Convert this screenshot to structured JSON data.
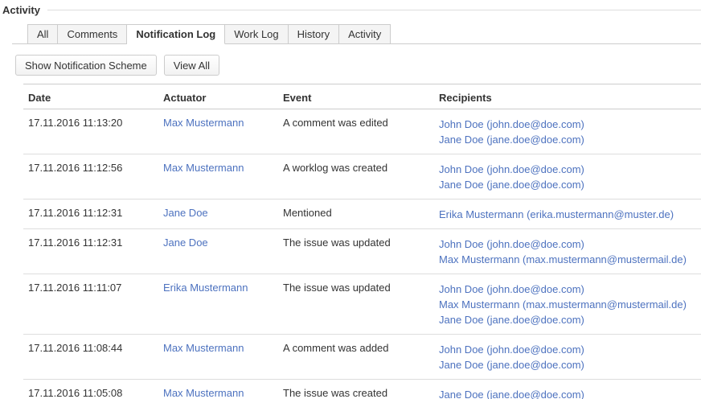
{
  "title": "Activity",
  "tabs": [
    {
      "label": "All",
      "active": false
    },
    {
      "label": "Comments",
      "active": false
    },
    {
      "label": "Notification Log",
      "active": true
    },
    {
      "label": "Work Log",
      "active": false
    },
    {
      "label": "History",
      "active": false
    },
    {
      "label": "Activity",
      "active": false
    }
  ],
  "toolbar": {
    "show_scheme_label": "Show Notification Scheme",
    "view_all_label": "View All"
  },
  "table": {
    "columns": [
      "Date",
      "Actuator",
      "Event",
      "Recipients"
    ],
    "rows": [
      {
        "date": "17.11.2016 11:13:20",
        "actuator": "Max Mustermann",
        "event": "A comment was edited",
        "recipients": [
          "John Doe (john.doe@doe.com)",
          "Jane Doe (jane.doe@doe.com)"
        ]
      },
      {
        "date": "17.11.2016 11:12:56",
        "actuator": "Max Mustermann",
        "event": "A worklog was created",
        "recipients": [
          "John Doe (john.doe@doe.com)",
          "Jane Doe (jane.doe@doe.com)"
        ]
      },
      {
        "date": "17.11.2016 11:12:31",
        "actuator": "Jane Doe",
        "event": "Mentioned",
        "recipients": [
          "Erika Mustermann (erika.mustermann@muster.de)"
        ]
      },
      {
        "date": "17.11.2016 11:12:31",
        "actuator": "Jane Doe",
        "event": "The issue was updated",
        "recipients": [
          "John Doe (john.doe@doe.com)",
          "Max Mustermann (max.mustermann@mustermail.de)"
        ]
      },
      {
        "date": "17.11.2016 11:11:07",
        "actuator": "Erika Mustermann",
        "event": "The issue was updated",
        "recipients": [
          "John Doe (john.doe@doe.com)",
          "Max Mustermann (max.mustermann@mustermail.de)",
          "Jane Doe (jane.doe@doe.com)"
        ]
      },
      {
        "date": "17.11.2016 11:08:44",
        "actuator": "Max Mustermann",
        "event": "A comment was added",
        "recipients": [
          "John Doe (john.doe@doe.com)",
          "Jane Doe (jane.doe@doe.com)"
        ]
      },
      {
        "date": "17.11.2016 11:05:08",
        "actuator": "Max Mustermann",
        "event": "The issue was created",
        "recipients": [
          "Jane Doe (jane.doe@doe.com)"
        ]
      }
    ]
  },
  "colors": {
    "link": "#4d72bf",
    "text": "#333333",
    "border_light": "#dddddd",
    "border_mid": "#cccccc",
    "tab_inactive_bg": "#f4f4f4"
  }
}
